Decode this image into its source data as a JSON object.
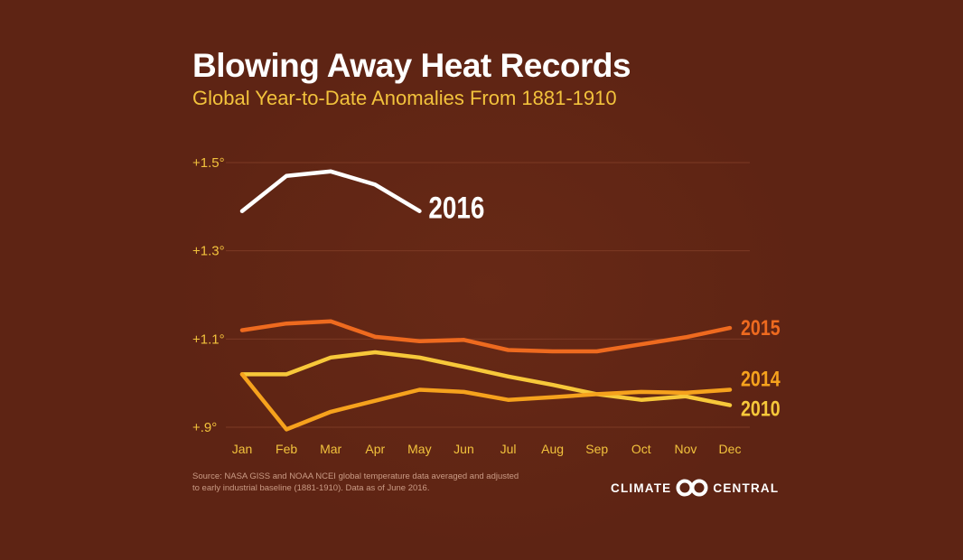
{
  "header": {
    "title": "Blowing Away Heat Records",
    "subtitle": "Global Year-to-Date Anomalies From 1881-1910"
  },
  "footer": {
    "source_line1": "Source: NASA GISS and NOAA NCEI global temperature data averaged and adjusted",
    "source_line2": "to early industrial baseline (1881-1910). Data as of June 2016.",
    "logo_left": "CLIMATE",
    "logo_right": "CENTRAL"
  },
  "colors": {
    "background": "#5e2414",
    "gridline": "#7c3a24",
    "tick_label": "#f2c23c",
    "month_label": "#f2c23c"
  },
  "chart_data": {
    "type": "line",
    "title": "Blowing Away Heat Records",
    "subtitle": "Global Year-to-Date Anomalies From 1881-1910",
    "categories": [
      "Jan",
      "Feb",
      "Mar",
      "Apr",
      "May",
      "Jun",
      "Jul",
      "Aug",
      "Sep",
      "Oct",
      "Nov",
      "Dec"
    ],
    "y_ticks": [
      "+.9°",
      "+1.1°",
      "+1.3°",
      "+1.5°"
    ],
    "y_tick_values": [
      0.9,
      1.1,
      1.3,
      1.5
    ],
    "ylim": [
      0.9,
      1.5
    ],
    "grid": true,
    "legend": "inline labels at line ends",
    "series": [
      {
        "name": "2016",
        "color": "#ffffff",
        "values": [
          1.39,
          1.47,
          1.48,
          1.45,
          1.39,
          null,
          null,
          null,
          null,
          null,
          null,
          null
        ]
      },
      {
        "name": "2015",
        "color": "#ee6a1f",
        "values": [
          1.12,
          1.135,
          1.14,
          1.105,
          1.095,
          1.098,
          1.075,
          1.072,
          1.072,
          1.088,
          1.104,
          1.125
        ]
      },
      {
        "name": "2014",
        "color": "#f6a21d",
        "values": [
          1.02,
          0.895,
          0.935,
          0.96,
          0.985,
          0.98,
          0.962,
          0.968,
          0.975,
          0.98,
          0.978,
          0.985
        ]
      },
      {
        "name": "2010",
        "color": "#f7c83a",
        "values": [
          1.02,
          1.02,
          1.058,
          1.07,
          1.058,
          1.037,
          1.015,
          0.996,
          0.975,
          0.962,
          0.97,
          0.95
        ]
      }
    ]
  }
}
